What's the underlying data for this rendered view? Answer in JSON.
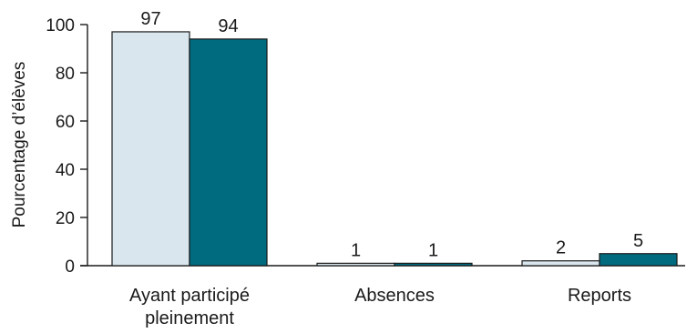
{
  "chart_data": {
    "type": "bar",
    "title": "",
    "xlabel": "",
    "ylabel": "Pourcentage d’élèves",
    "ylim": [
      0,
      100
    ],
    "yticks": [
      0,
      20,
      40,
      60,
      80,
      100
    ],
    "grid": false,
    "legend": "none",
    "categories": [
      [
        "Ayant participé",
        "pleinement"
      ],
      [
        "Absences"
      ],
      [
        "Reports"
      ]
    ],
    "series": [
      {
        "values": [
          97,
          1,
          2
        ],
        "labels": [
          "97",
          "1",
          "2"
        ],
        "color": "#d9e6ee"
      },
      {
        "values": [
          94,
          1,
          5
        ],
        "labels": [
          "94",
          "1",
          "5"
        ],
        "color": "#006a7f"
      }
    ],
    "colors": {
      "axis": "#1a1a1a",
      "edge": "#1a1a1a",
      "text": "#1a1a1a"
    }
  }
}
